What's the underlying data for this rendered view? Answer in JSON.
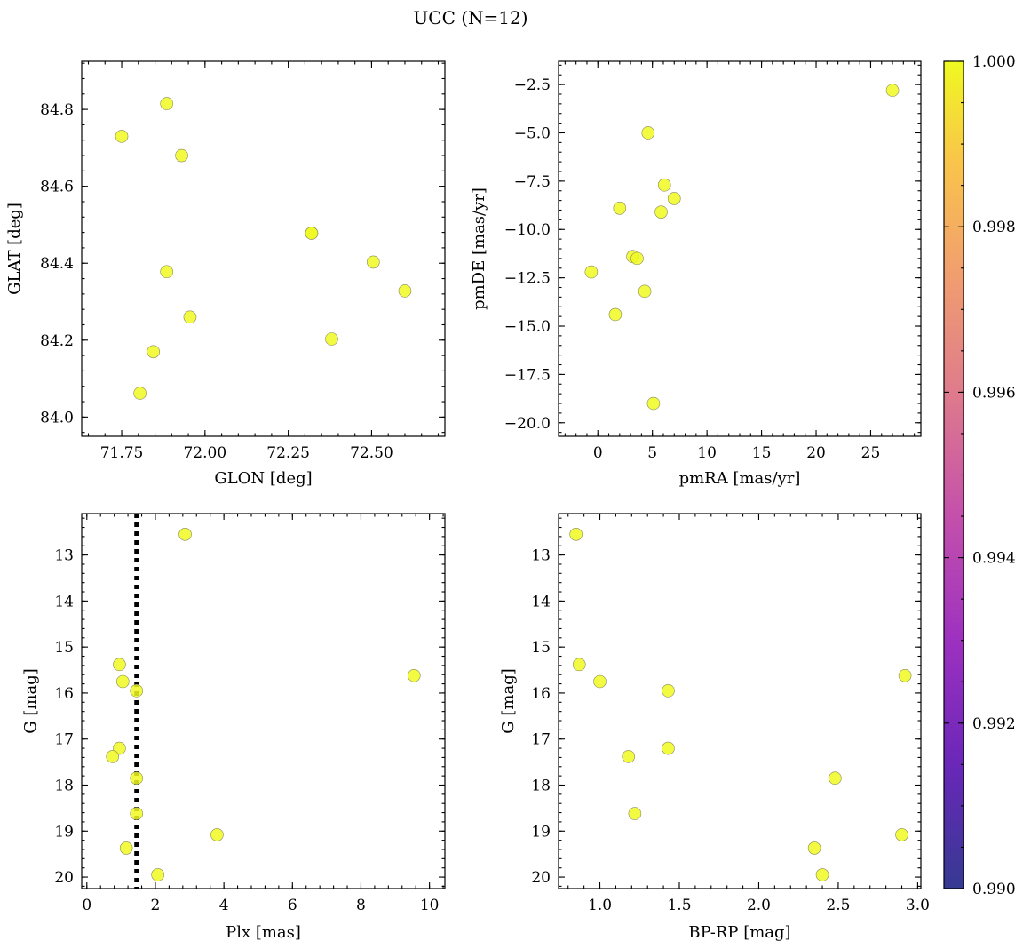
{
  "title": "UCC (N=12)",
  "colors": {
    "point": "#f0f921",
    "line": "#000000"
  },
  "chart_data": [
    {
      "id": "glon-glat",
      "type": "scatter",
      "xlabel": "GLON [deg]",
      "ylabel": "GLAT [deg]",
      "xlim": [
        71.63,
        72.72
      ],
      "ylim": [
        83.95,
        84.925
      ],
      "yinvert": false,
      "xticks": [
        71.75,
        72.0,
        72.25,
        72.5
      ],
      "xtick_labels": [
        "71.75",
        "72.00",
        "72.25",
        "72.50"
      ],
      "yticks": [
        84.0,
        84.2,
        84.4,
        84.6,
        84.8
      ],
      "ytick_labels": [
        "84.0",
        "84.2",
        "84.4",
        "84.6",
        "84.8"
      ],
      "x": [
        71.75,
        71.885,
        71.93,
        72.32,
        72.32,
        72.505,
        72.6,
        71.885,
        71.955,
        72.38,
        71.845,
        71.805
      ],
      "y": [
        84.73,
        84.815,
        84.68,
        84.478,
        84.478,
        84.403,
        84.328,
        84.378,
        84.26,
        84.203,
        84.17,
        84.062
      ]
    },
    {
      "id": "pmra-pmde",
      "type": "scatter",
      "xlabel": "pmRA [mas/yr]",
      "ylabel": "pmDE [mas/yr]",
      "xlim": [
        -3.6,
        29.6
      ],
      "ylim": [
        -20.7,
        -1.3
      ],
      "yinvert": false,
      "xticks": [
        0,
        5,
        10,
        15,
        20,
        25
      ],
      "xtick_labels": [
        "0",
        "5",
        "10",
        "15",
        "20",
        "25"
      ],
      "yticks": [
        -20.0,
        -17.5,
        -15.0,
        -12.5,
        -10.0,
        -7.5,
        -5.0,
        -2.5
      ],
      "ytick_labels": [
        "−20.0",
        "−17.5",
        "−15.0",
        "−12.5",
        "−10.0",
        "−7.5",
        "−5.0",
        "−2.5"
      ],
      "x": [
        27.0,
        4.6,
        6.1,
        7.0,
        2.0,
        5.8,
        3.2,
        3.6,
        -0.6,
        4.3,
        1.6,
        5.1
      ],
      "y": [
        -2.8,
        -5.0,
        -7.7,
        -8.4,
        -8.9,
        -9.1,
        -11.4,
        -11.5,
        -12.2,
        -13.2,
        -14.4,
        -19.0
      ]
    },
    {
      "id": "plx-g",
      "type": "scatter",
      "xlabel": "Plx [mas]",
      "ylabel": "G [mag]",
      "xlim": [
        -0.15,
        10.45
      ],
      "ylim": [
        12.1,
        20.25
      ],
      "yinvert": true,
      "xticks": [
        0,
        2,
        4,
        6,
        8,
        10
      ],
      "xtick_labels": [
        "0",
        "2",
        "4",
        "6",
        "8",
        "10"
      ],
      "yticks": [
        13,
        14,
        15,
        16,
        17,
        18,
        19,
        20
      ],
      "ytick_labels": [
        "13",
        "14",
        "15",
        "16",
        "17",
        "18",
        "19",
        "20"
      ],
      "vline": 1.45,
      "x": [
        2.87,
        0.95,
        1.05,
        1.45,
        9.55,
        0.95,
        0.75,
        1.45,
        1.45,
        3.8,
        1.15,
        2.07
      ],
      "y": [
        12.55,
        15.38,
        15.75,
        15.95,
        15.62,
        17.2,
        17.38,
        17.85,
        18.62,
        19.08,
        19.37,
        19.95
      ]
    },
    {
      "id": "bprp-g",
      "type": "scatter",
      "xlabel": "BP-RP [mag]",
      "ylabel": "G [mag]",
      "xlim": [
        0.74,
        3.02
      ],
      "ylim": [
        12.1,
        20.25
      ],
      "yinvert": true,
      "xticks": [
        1.0,
        1.5,
        2.0,
        2.5,
        3.0
      ],
      "xtick_labels": [
        "1.0",
        "1.5",
        "2.0",
        "2.5",
        "3.0"
      ],
      "yticks": [
        13,
        14,
        15,
        16,
        17,
        18,
        19,
        20
      ],
      "ytick_labels": [
        "13",
        "14",
        "15",
        "16",
        "17",
        "18",
        "19",
        "20"
      ],
      "x": [
        0.85,
        0.87,
        1.0,
        1.43,
        2.92,
        1.43,
        1.18,
        2.48,
        1.22,
        2.9,
        2.35,
        2.4
      ],
      "y": [
        12.55,
        15.38,
        15.75,
        15.95,
        15.62,
        17.2,
        17.38,
        17.85,
        18.62,
        19.08,
        19.37,
        19.95
      ]
    }
  ],
  "colorbar": {
    "type": "colorbar",
    "range": [
      0.99,
      1.0
    ],
    "ticks": [
      0.99,
      0.992,
      0.994,
      0.996,
      0.998,
      1.0
    ],
    "tick_labels": [
      "0.990",
      "0.992",
      "0.994",
      "0.996",
      "0.998",
      "1.000"
    ],
    "colormap": "plasma"
  }
}
